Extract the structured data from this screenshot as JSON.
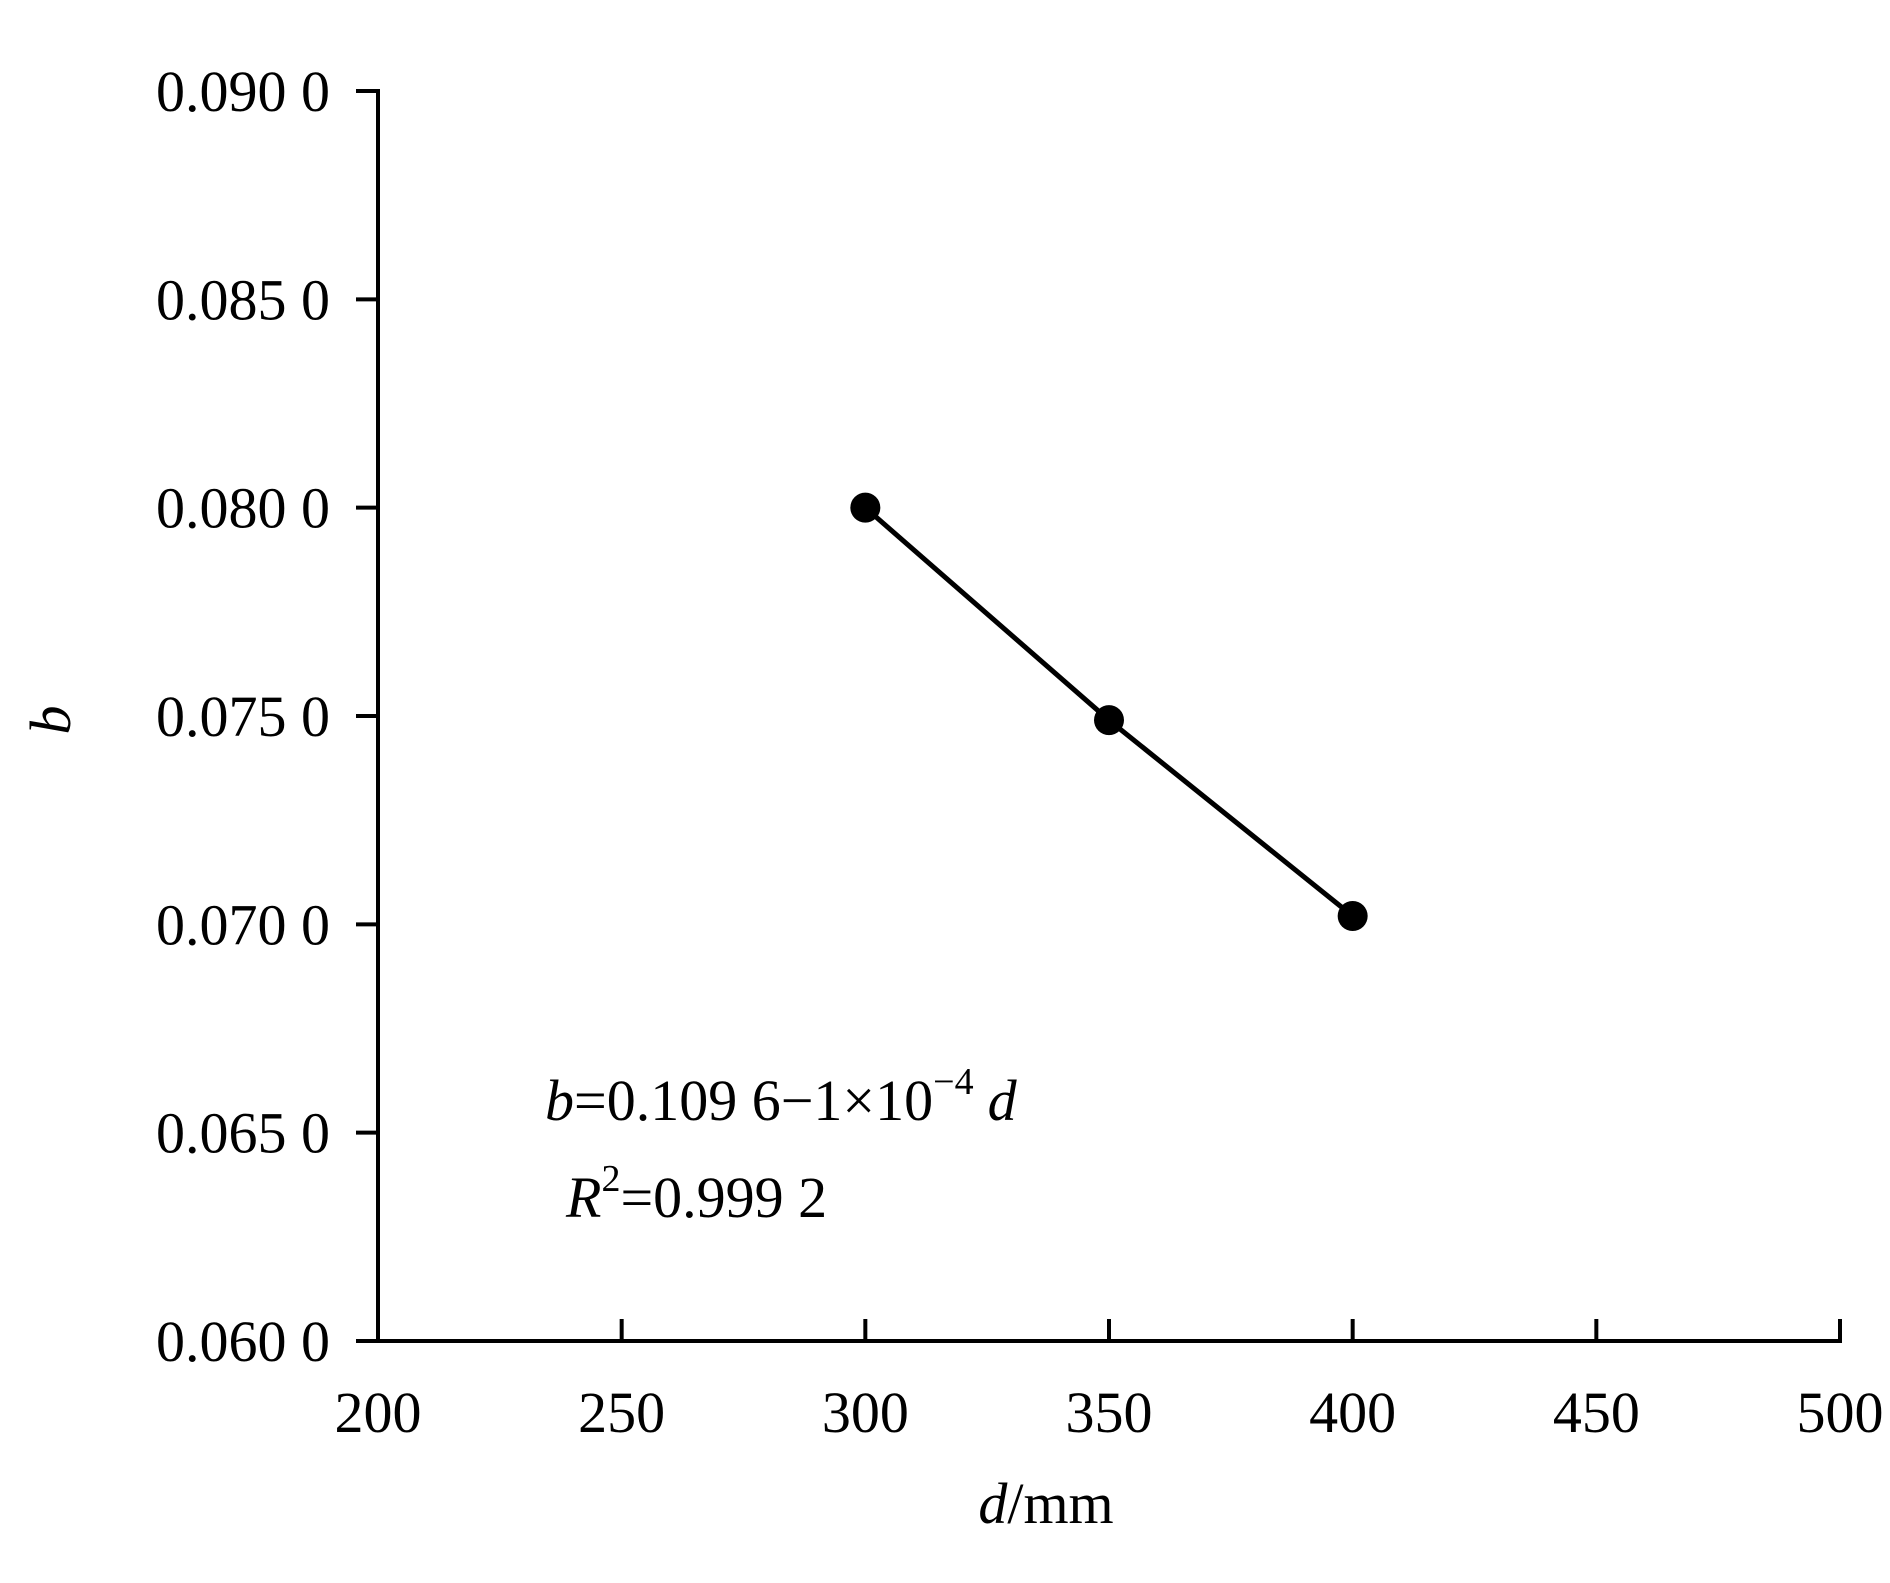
{
  "chart_data": {
    "type": "line",
    "title": "",
    "xlabel": {
      "var": "d",
      "unit": "/mm"
    },
    "ylabel": {
      "var": "b"
    },
    "xlim": [
      200,
      500
    ],
    "ylim": [
      0.06,
      0.09
    ],
    "xticks": [
      "200",
      "250",
      "300",
      "350",
      "400",
      "450",
      "500"
    ],
    "yticks": [
      "0.060 0",
      "0.065 0",
      "0.070 0",
      "0.075 0",
      "0.080 0",
      "0.085 0",
      "0.090 0"
    ],
    "grid": false,
    "legend": "none",
    "series": [
      {
        "marker": "filled-circle",
        "color": "#000000",
        "points": [
          {
            "x": 300,
            "y": 0.08
          },
          {
            "x": 350,
            "y": 0.0749
          },
          {
            "x": 400,
            "y": 0.0702
          }
        ]
      }
    ],
    "annotations": {
      "equation": {
        "lhs": "b",
        "rhs": "=0.109 6−1×10",
        "exp": "−4",
        "var": "d"
      },
      "r2": {
        "var": "R",
        "exp": "2",
        "rhs": "=0.999 2"
      }
    }
  }
}
